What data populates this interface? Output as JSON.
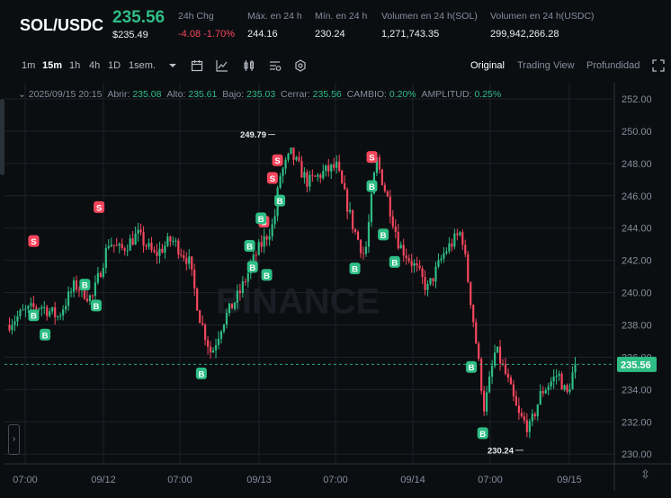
{
  "header": {
    "pair": "SOL/USDC",
    "price": "235.56",
    "price_usd": "$235.49",
    "stats": [
      {
        "label": "24h Chg",
        "value": "-4.08 -1.70%",
        "color": "#f6465d"
      },
      {
        "label": "Máx. en 24 h",
        "value": "244.16"
      },
      {
        "label": "Mín. en 24 h",
        "value": "230.24"
      },
      {
        "label": "Volumen en 24 h(SOL)",
        "value": "1,271,743.35"
      },
      {
        "label": "Volumen en 24 h(USDC)",
        "value": "299,942,266.28"
      }
    ]
  },
  "toolbar": {
    "timeframes": [
      "1m",
      "15m",
      "1h",
      "4h",
      "1D",
      "1sem."
    ],
    "active_timeframe": "15m",
    "icons": [
      "chevron-down-icon",
      "calendar-icon",
      "line-chart-icon",
      "candles-icon",
      "indicators-icon",
      "settings-icon"
    ],
    "views": [
      "Original",
      "Trading View",
      "Profundidad"
    ],
    "active_view": "Original"
  },
  "ohlc": {
    "date": "2025/09/15 20:15",
    "open_label": "Abrir:",
    "open": "235.08",
    "high_label": "Alto:",
    "high": "235.61",
    "low_label": "Bajo:",
    "low": "235.03",
    "close_label": "Cerrar:",
    "close": "235.56",
    "change_label": "CAMBIO:",
    "change": "0.20%",
    "amp_label": "AMPLITUD:",
    "amp": "0.25%"
  },
  "chart_data": {
    "type": "candlestick",
    "title": "",
    "watermark": "BINANCE",
    "y_ticks": [
      230,
      232,
      234,
      236,
      238,
      240,
      242,
      244,
      246,
      248,
      250,
      252
    ],
    "x_ticks": [
      "07:00",
      "09/12",
      "07:00",
      "09/13",
      "07:00",
      "09/14",
      "07:00",
      "09/15"
    ],
    "ylim": [
      229.4,
      253.0
    ],
    "last_price": "235.56",
    "max_label": "249.79",
    "min_label": "230.24",
    "colors": {
      "up": "#2ebd85",
      "down": "#f6465d"
    },
    "path_anchors": [
      [
        0,
        238.0
      ],
      [
        0.03,
        238.8
      ],
      [
        0.06,
        239.2
      ],
      [
        0.09,
        238.5
      ],
      [
        0.12,
        240.5
      ],
      [
        0.15,
        239.6
      ],
      [
        0.18,
        243.2
      ],
      [
        0.2,
        242.6
      ],
      [
        0.23,
        243.6
      ],
      [
        0.26,
        242.3
      ],
      [
        0.29,
        243.3
      ],
      [
        0.32,
        242.0
      ],
      [
        0.34,
        238.4
      ],
      [
        0.36,
        236.2
      ],
      [
        0.38,
        238.2
      ],
      [
        0.41,
        240.0
      ],
      [
        0.44,
        242.5
      ],
      [
        0.47,
        244.3
      ],
      [
        0.48,
        247.2
      ],
      [
        0.5,
        248.6
      ],
      [
        0.53,
        246.8
      ],
      [
        0.56,
        247.5
      ],
      [
        0.58,
        247.8
      ],
      [
        0.61,
        244.0
      ],
      [
        0.63,
        242.2
      ],
      [
        0.65,
        248.3
      ],
      [
        0.67,
        245.8
      ],
      [
        0.69,
        243.0
      ],
      [
        0.72,
        241.5
      ],
      [
        0.74,
        240.2
      ],
      [
        0.77,
        242.5
      ],
      [
        0.8,
        243.8
      ],
      [
        0.82,
        238.5
      ],
      [
        0.84,
        232.8
      ],
      [
        0.86,
        236.5
      ],
      [
        0.88,
        234.7
      ],
      [
        0.9,
        232.4
      ],
      [
        0.92,
        231.6
      ],
      [
        0.94,
        233.8
      ],
      [
        0.97,
        235.0
      ],
      [
        0.985,
        233.6
      ],
      [
        1.0,
        235.56
      ]
    ],
    "signals": [
      {
        "t": 0.045,
        "type": "S",
        "price": 243.2
      },
      {
        "t": 0.045,
        "type": "B",
        "price": 238.6
      },
      {
        "t": 0.065,
        "type": "B",
        "price": 237.4
      },
      {
        "t": 0.135,
        "type": "B",
        "price": 240.5
      },
      {
        "t": 0.155,
        "type": "B",
        "price": 239.2
      },
      {
        "t": 0.16,
        "type": "S",
        "price": 245.3
      },
      {
        "t": 0.34,
        "type": "B",
        "price": 235.0
      },
      {
        "t": 0.425,
        "type": "B",
        "price": 242.9
      },
      {
        "t": 0.45,
        "type": "S",
        "price": 244.4
      },
      {
        "t": 0.43,
        "type": "B",
        "price": 241.6
      },
      {
        "t": 0.445,
        "type": "B",
        "price": 244.6
      },
      {
        "t": 0.455,
        "type": "B",
        "price": 241.1
      },
      {
        "t": 0.465,
        "type": "S",
        "price": 247.1
      },
      {
        "t": 0.474,
        "type": "S",
        "price": 248.2
      },
      {
        "t": 0.478,
        "type": "B",
        "price": 245.7
      },
      {
        "t": 0.61,
        "type": "B",
        "price": 241.5
      },
      {
        "t": 0.64,
        "type": "S",
        "price": 248.4
      },
      {
        "t": 0.64,
        "type": "B",
        "price": 246.6
      },
      {
        "t": 0.66,
        "type": "B",
        "price": 243.6
      },
      {
        "t": 0.68,
        "type": "B",
        "price": 241.9
      },
      {
        "t": 0.815,
        "type": "B",
        "price": 235.4
      },
      {
        "t": 0.835,
        "type": "B",
        "price": 231.3
      }
    ]
  },
  "left_toggle": "›",
  "bottom_icon": "⇳"
}
